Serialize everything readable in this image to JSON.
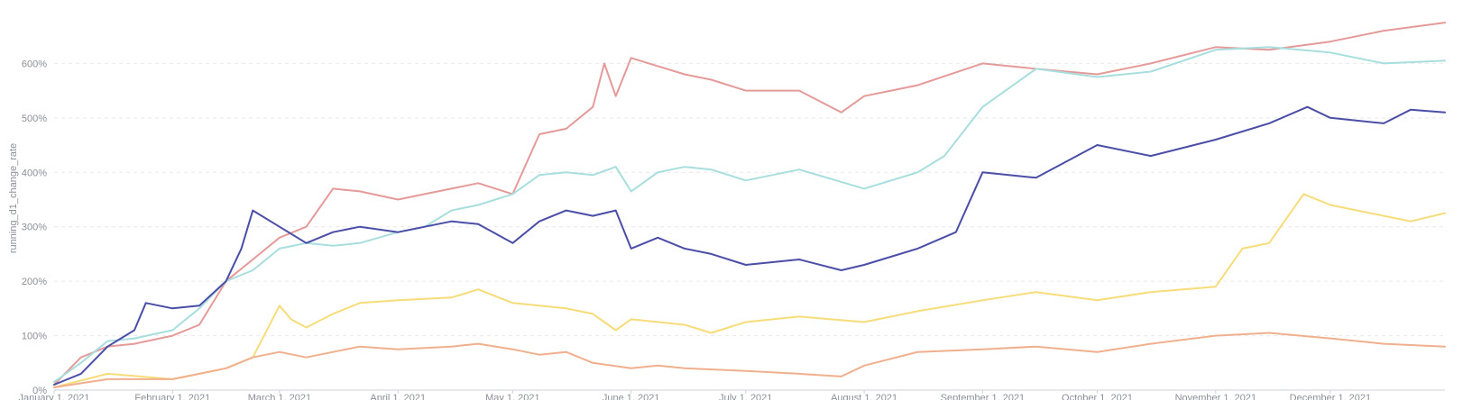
{
  "chart_data": {
    "type": "line",
    "title": "",
    "ylabel": "running_d1_change_rate",
    "xlabel": "",
    "x_ticks": [
      "January 1, 2021",
      "February 1, 2021",
      "March 1, 2021",
      "April 1, 2021",
      "May 1, 2021",
      "June 1, 2021",
      "July 1, 2021",
      "August 1, 2021",
      "September 1, 2021",
      "October 1, 2021",
      "November 1, 2021",
      "December 1, 2021"
    ],
    "y_ticks": [
      "0%",
      "100%",
      "200%",
      "300%",
      "400%",
      "500%",
      "600%"
    ],
    "ylim": [
      0,
      690
    ],
    "xlim": [
      "2021-01-01",
      "2021-12-31"
    ],
    "grid": true,
    "series": [
      {
        "color": "#e59a9a",
        "points": [
          [
            "2021-01-01",
            10
          ],
          [
            "2021-01-08",
            60
          ],
          [
            "2021-01-15",
            80
          ],
          [
            "2021-01-22",
            85
          ],
          [
            "2021-02-01",
            100
          ],
          [
            "2021-02-08",
            120
          ],
          [
            "2021-02-15",
            200
          ],
          [
            "2021-02-22",
            240
          ],
          [
            "2021-03-01",
            280
          ],
          [
            "2021-03-08",
            300
          ],
          [
            "2021-03-15",
            370
          ],
          [
            "2021-03-22",
            365
          ],
          [
            "2021-04-01",
            350
          ],
          [
            "2021-04-08",
            360
          ],
          [
            "2021-04-15",
            370
          ],
          [
            "2021-04-22",
            380
          ],
          [
            "2021-05-01",
            360
          ],
          [
            "2021-05-08",
            470
          ],
          [
            "2021-05-15",
            480
          ],
          [
            "2021-05-22",
            520
          ],
          [
            "2021-05-25",
            600
          ],
          [
            "2021-05-28",
            540
          ],
          [
            "2021-06-01",
            610
          ],
          [
            "2021-06-08",
            595
          ],
          [
            "2021-06-15",
            580
          ],
          [
            "2021-06-22",
            570
          ],
          [
            "2021-07-01",
            550
          ],
          [
            "2021-07-15",
            550
          ],
          [
            "2021-07-26",
            510
          ],
          [
            "2021-08-01",
            540
          ],
          [
            "2021-08-15",
            560
          ],
          [
            "2021-09-01",
            600
          ],
          [
            "2021-09-15",
            590
          ],
          [
            "2021-10-01",
            580
          ],
          [
            "2021-10-15",
            600
          ],
          [
            "2021-11-01",
            630
          ],
          [
            "2021-11-15",
            625
          ],
          [
            "2021-12-01",
            640
          ],
          [
            "2021-12-15",
            660
          ],
          [
            "2021-12-31",
            675
          ]
        ]
      },
      {
        "color": "#a8dede",
        "points": [
          [
            "2021-01-01",
            15
          ],
          [
            "2021-01-08",
            50
          ],
          [
            "2021-01-15",
            90
          ],
          [
            "2021-01-22",
            95
          ],
          [
            "2021-02-01",
            110
          ],
          [
            "2021-02-08",
            150
          ],
          [
            "2021-02-15",
            200
          ],
          [
            "2021-02-22",
            220
          ],
          [
            "2021-03-01",
            260
          ],
          [
            "2021-03-08",
            270
          ],
          [
            "2021-03-15",
            265
          ],
          [
            "2021-03-22",
            270
          ],
          [
            "2021-04-01",
            290
          ],
          [
            "2021-04-08",
            300
          ],
          [
            "2021-04-15",
            330
          ],
          [
            "2021-04-22",
            340
          ],
          [
            "2021-05-01",
            360
          ],
          [
            "2021-05-08",
            395
          ],
          [
            "2021-05-15",
            400
          ],
          [
            "2021-05-22",
            395
          ],
          [
            "2021-05-28",
            410
          ],
          [
            "2021-06-01",
            365
          ],
          [
            "2021-06-08",
            400
          ],
          [
            "2021-06-15",
            410
          ],
          [
            "2021-06-22",
            405
          ],
          [
            "2021-07-01",
            385
          ],
          [
            "2021-07-15",
            405
          ],
          [
            "2021-08-01",
            370
          ],
          [
            "2021-08-15",
            400
          ],
          [
            "2021-08-22",
            430
          ],
          [
            "2021-09-01",
            520
          ],
          [
            "2021-09-15",
            590
          ],
          [
            "2021-10-01",
            575
          ],
          [
            "2021-10-15",
            585
          ],
          [
            "2021-11-01",
            625
          ],
          [
            "2021-11-15",
            630
          ],
          [
            "2021-12-01",
            620
          ],
          [
            "2021-12-15",
            600
          ],
          [
            "2021-12-31",
            605
          ]
        ]
      },
      {
        "color": "#4b4ea6",
        "points": [
          [
            "2021-01-01",
            10
          ],
          [
            "2021-01-08",
            30
          ],
          [
            "2021-01-15",
            80
          ],
          [
            "2021-01-22",
            110
          ],
          [
            "2021-01-25",
            160
          ],
          [
            "2021-02-01",
            150
          ],
          [
            "2021-02-08",
            155
          ],
          [
            "2021-02-15",
            200
          ],
          [
            "2021-02-19",
            260
          ],
          [
            "2021-02-22",
            330
          ],
          [
            "2021-03-01",
            300
          ],
          [
            "2021-03-08",
            270
          ],
          [
            "2021-03-15",
            290
          ],
          [
            "2021-03-22",
            300
          ],
          [
            "2021-04-01",
            290
          ],
          [
            "2021-04-08",
            300
          ],
          [
            "2021-04-15",
            310
          ],
          [
            "2021-04-22",
            305
          ],
          [
            "2021-05-01",
            270
          ],
          [
            "2021-05-08",
            310
          ],
          [
            "2021-05-15",
            330
          ],
          [
            "2021-05-22",
            320
          ],
          [
            "2021-05-28",
            330
          ],
          [
            "2021-06-01",
            260
          ],
          [
            "2021-06-08",
            280
          ],
          [
            "2021-06-15",
            260
          ],
          [
            "2021-06-22",
            250
          ],
          [
            "2021-07-01",
            230
          ],
          [
            "2021-07-15",
            240
          ],
          [
            "2021-07-26",
            220
          ],
          [
            "2021-08-01",
            230
          ],
          [
            "2021-08-15",
            260
          ],
          [
            "2021-08-25",
            290
          ],
          [
            "2021-09-01",
            400
          ],
          [
            "2021-09-15",
            390
          ],
          [
            "2021-10-01",
            450
          ],
          [
            "2021-10-15",
            430
          ],
          [
            "2021-11-01",
            460
          ],
          [
            "2021-11-15",
            490
          ],
          [
            "2021-11-25",
            520
          ],
          [
            "2021-12-01",
            500
          ],
          [
            "2021-12-15",
            490
          ],
          [
            "2021-12-22",
            515
          ],
          [
            "2021-12-31",
            510
          ]
        ]
      },
      {
        "color": "#f7dc7a",
        "points": [
          [
            "2021-01-01",
            5
          ],
          [
            "2021-01-15",
            30
          ],
          [
            "2021-02-01",
            20
          ],
          [
            "2021-02-08",
            30
          ],
          [
            "2021-02-15",
            40
          ],
          [
            "2021-02-22",
            60
          ],
          [
            "2021-03-01",
            155
          ],
          [
            "2021-03-04",
            130
          ],
          [
            "2021-03-08",
            115
          ],
          [
            "2021-03-15",
            140
          ],
          [
            "2021-03-22",
            160
          ],
          [
            "2021-04-01",
            165
          ],
          [
            "2021-04-15",
            170
          ],
          [
            "2021-04-22",
            185
          ],
          [
            "2021-05-01",
            160
          ],
          [
            "2021-05-08",
            155
          ],
          [
            "2021-05-15",
            150
          ],
          [
            "2021-05-22",
            140
          ],
          [
            "2021-05-28",
            110
          ],
          [
            "2021-06-01",
            130
          ],
          [
            "2021-06-15",
            120
          ],
          [
            "2021-06-22",
            105
          ],
          [
            "2021-07-01",
            125
          ],
          [
            "2021-07-15",
            135
          ],
          [
            "2021-08-01",
            125
          ],
          [
            "2021-08-15",
            145
          ],
          [
            "2021-09-01",
            165
          ],
          [
            "2021-09-15",
            180
          ],
          [
            "2021-10-01",
            165
          ],
          [
            "2021-10-15",
            180
          ],
          [
            "2021-11-01",
            190
          ],
          [
            "2021-11-08",
            260
          ],
          [
            "2021-11-15",
            270
          ],
          [
            "2021-11-24",
            360
          ],
          [
            "2021-12-01",
            340
          ],
          [
            "2021-12-15",
            320
          ],
          [
            "2021-12-22",
            310
          ],
          [
            "2021-12-31",
            325
          ]
        ]
      },
      {
        "color": "#f0b08e",
        "points": [
          [
            "2021-01-01",
            5
          ],
          [
            "2021-01-15",
            20
          ],
          [
            "2021-02-01",
            20
          ],
          [
            "2021-02-08",
            30
          ],
          [
            "2021-02-15",
            40
          ],
          [
            "2021-02-22",
            60
          ],
          [
            "2021-03-01",
            70
          ],
          [
            "2021-03-08",
            60
          ],
          [
            "2021-03-15",
            70
          ],
          [
            "2021-03-22",
            80
          ],
          [
            "2021-04-01",
            75
          ],
          [
            "2021-04-15",
            80
          ],
          [
            "2021-04-22",
            85
          ],
          [
            "2021-05-01",
            75
          ],
          [
            "2021-05-08",
            65
          ],
          [
            "2021-05-15",
            70
          ],
          [
            "2021-05-22",
            50
          ],
          [
            "2021-06-01",
            40
          ],
          [
            "2021-06-08",
            45
          ],
          [
            "2021-06-15",
            40
          ],
          [
            "2021-07-01",
            35
          ],
          [
            "2021-07-15",
            30
          ],
          [
            "2021-07-26",
            25
          ],
          [
            "2021-08-01",
            45
          ],
          [
            "2021-08-15",
            70
          ],
          [
            "2021-09-01",
            75
          ],
          [
            "2021-09-15",
            80
          ],
          [
            "2021-10-01",
            70
          ],
          [
            "2021-10-15",
            85
          ],
          [
            "2021-11-01",
            100
          ],
          [
            "2021-11-15",
            105
          ],
          [
            "2021-12-01",
            95
          ],
          [
            "2021-12-15",
            85
          ],
          [
            "2021-12-31",
            80
          ]
        ]
      }
    ]
  }
}
